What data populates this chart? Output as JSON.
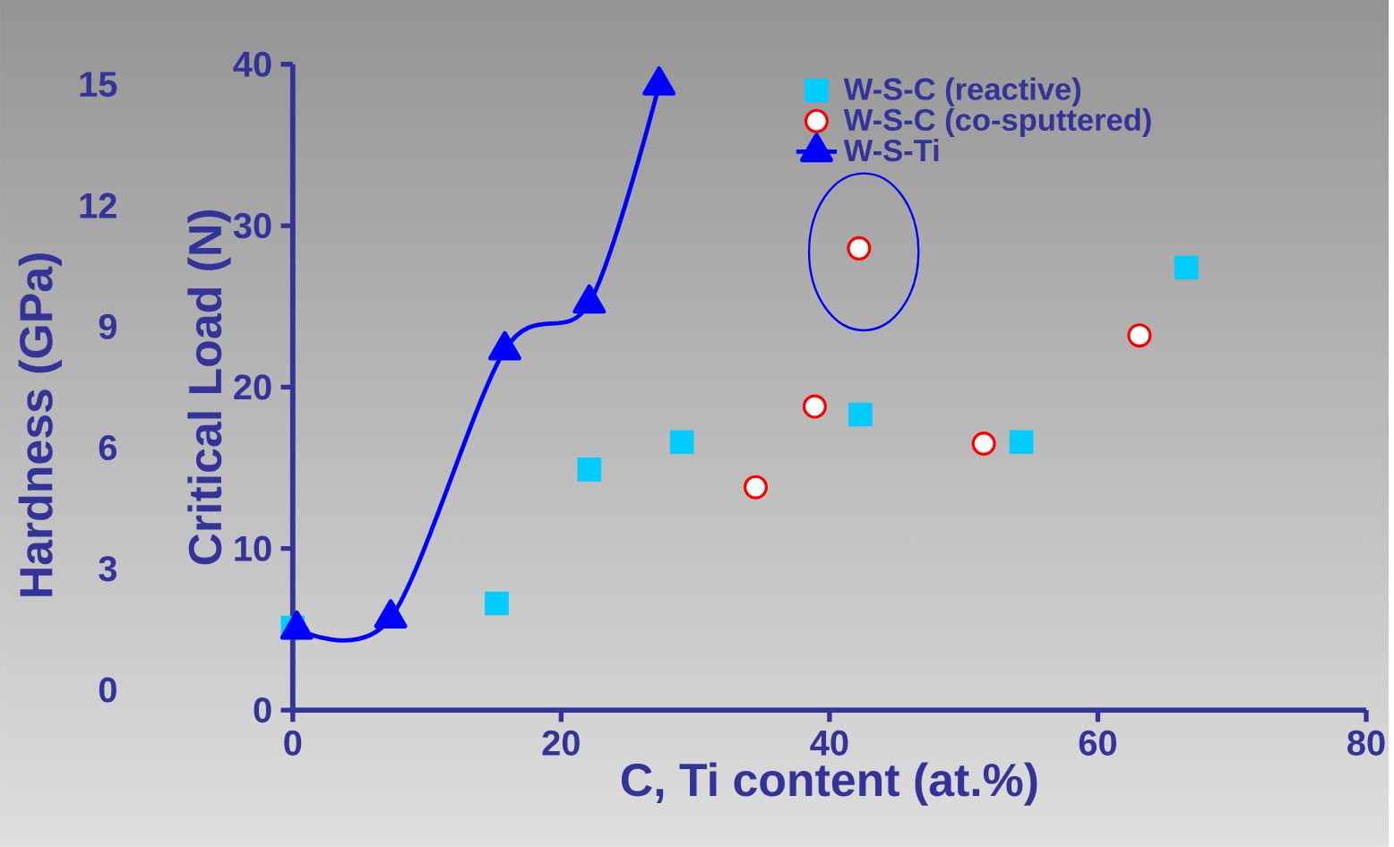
{
  "chart_data": {
    "type": "scatter",
    "xlabel": "C, Ti content (at.%)",
    "ylabel": "Critical Load (N)",
    "y2label": "Hardness (GPa)",
    "xlim": [
      0,
      80
    ],
    "xticks": [
      0,
      20,
      40,
      60,
      80
    ],
    "ylim": [
      0,
      40
    ],
    "yticks": [
      0,
      10,
      20,
      30,
      40
    ],
    "y2lim": [
      -0.5,
      15.5
    ],
    "y2ticks": [
      0,
      3,
      6,
      9,
      12,
      15
    ],
    "legend": "top",
    "grid": false,
    "series": [
      {
        "name": "W-S-C (reactive)",
        "marker": "square",
        "color": "#00ccff",
        "x": [
          0,
          15.2,
          22.1,
          29.0,
          42.3,
          54.3,
          66.6
        ],
        "values": [
          5.1,
          6.6,
          14.9,
          16.6,
          18.3,
          16.6,
          27.4
        ]
      },
      {
        "name": "W-S-C (co-sputtered)",
        "marker": "circle",
        "color": "#ff0000",
        "x": [
          34.5,
          38.9,
          42.2,
          51.5,
          63.1
        ],
        "values": [
          13.8,
          18.8,
          28.6,
          16.5,
          23.2
        ]
      },
      {
        "name": "W-S-Ti",
        "type": "line",
        "marker": "triangle",
        "line_style": "solid",
        "color": "#0000ff",
        "x": [
          0.3,
          7.3,
          15.8,
          22.1,
          27.3
        ],
        "values": [
          5.0,
          5.7,
          22.3,
          25.2,
          38.7
        ]
      }
    ]
  }
}
